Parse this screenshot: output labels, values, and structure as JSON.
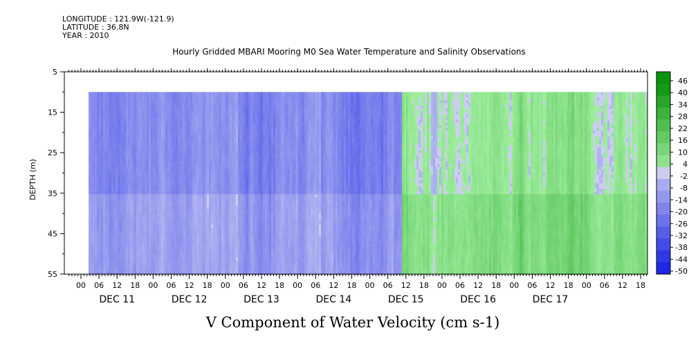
{
  "meta": {
    "longitude": "LONGITUDE : 121.9W(-121.9)",
    "latitude": "LATITUDE : 36.8N",
    "year": "YEAR : 2010"
  },
  "title": "Hourly Gridded MBARI Mooring M0 Sea Water Temperature and Salinity Observations",
  "chart_data": {
    "type": "heatmap",
    "title": "V Component of Water Velocity (cm s-1)",
    "xlabel": "",
    "ylabel": "DEPTH (m)",
    "ylim": [
      5,
      55
    ],
    "y_inverted": true,
    "y_ticks": [
      "5",
      "15",
      "25",
      "35",
      "45",
      "55"
    ],
    "x_hour_ticks": [
      "00",
      "06",
      "12",
      "18",
      "00",
      "06",
      "12",
      "18",
      "00",
      "06",
      "12",
      "18",
      "00",
      "06",
      "12",
      "18",
      "00",
      "06",
      "12",
      "18",
      "00",
      "06",
      "12",
      "18",
      "00",
      "06",
      "12",
      "18",
      "00",
      "06",
      "12",
      "18"
    ],
    "x_day_labels": [
      "DEC 11",
      "DEC 12",
      "DEC 13",
      "DEC 14",
      "DEC 15",
      "DEC 16",
      "DEC 17"
    ],
    "data_depth_range": [
      10,
      55
    ],
    "colorbar": {
      "labels": [
        "46",
        "40",
        "34",
        "28",
        "22",
        "16",
        "10",
        "4",
        "-2",
        "-8",
        "-14",
        "-20",
        "-26",
        "-32",
        "-38",
        "-44",
        "-50"
      ],
      "range": [
        -50,
        50
      ]
    },
    "approx_mean_v_by_day": [
      {
        "day": "DEC 11",
        "value": -14
      },
      {
        "day": "DEC 12",
        "value": -12
      },
      {
        "day": "DEC 13",
        "value": -16
      },
      {
        "day": "DEC 14",
        "value": -20
      },
      {
        "day": "DEC 15",
        "value": 2
      },
      {
        "day": "DEC 16",
        "value": 8
      },
      {
        "day": "DEC 17",
        "value": 6
      }
    ],
    "grid": false,
    "legend": "colorbar-right"
  }
}
